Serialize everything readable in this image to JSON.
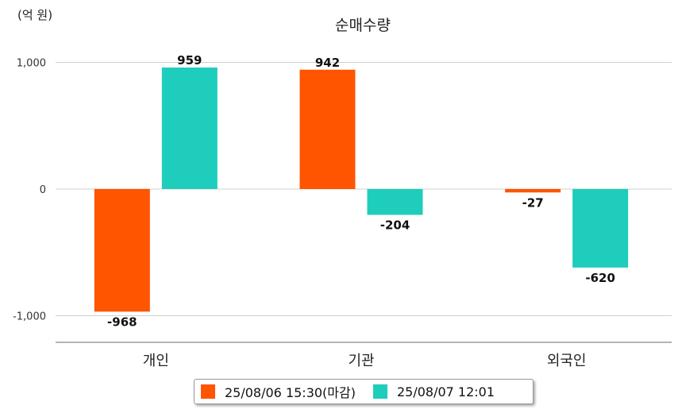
{
  "chart_data": {
    "type": "bar",
    "title": "순매수량",
    "unit_label": "(억 원)",
    "categories": [
      "개인",
      "기관",
      "외국인"
    ],
    "series": [
      {
        "name": "25/08/06 15:30(마감)",
        "color": "#ff5500",
        "values": [
          -968,
          942,
          -27
        ]
      },
      {
        "name": "25/08/07 12:01",
        "color": "#1ecdbb",
        "values": [
          959,
          -204,
          -620
        ]
      }
    ],
    "data_labels": [
      [
        "-968",
        "942",
        "-27"
      ],
      [
        "959",
        "-204",
        "-620"
      ]
    ],
    "yticks": [
      {
        "value": 1000,
        "label": "1,000"
      },
      {
        "value": 0,
        "label": "0"
      },
      {
        "value": -1000,
        "label": "-1,000"
      }
    ],
    "ylim": [
      -1200,
      1100
    ],
    "grid": true,
    "legend_position": "bottom-center"
  }
}
